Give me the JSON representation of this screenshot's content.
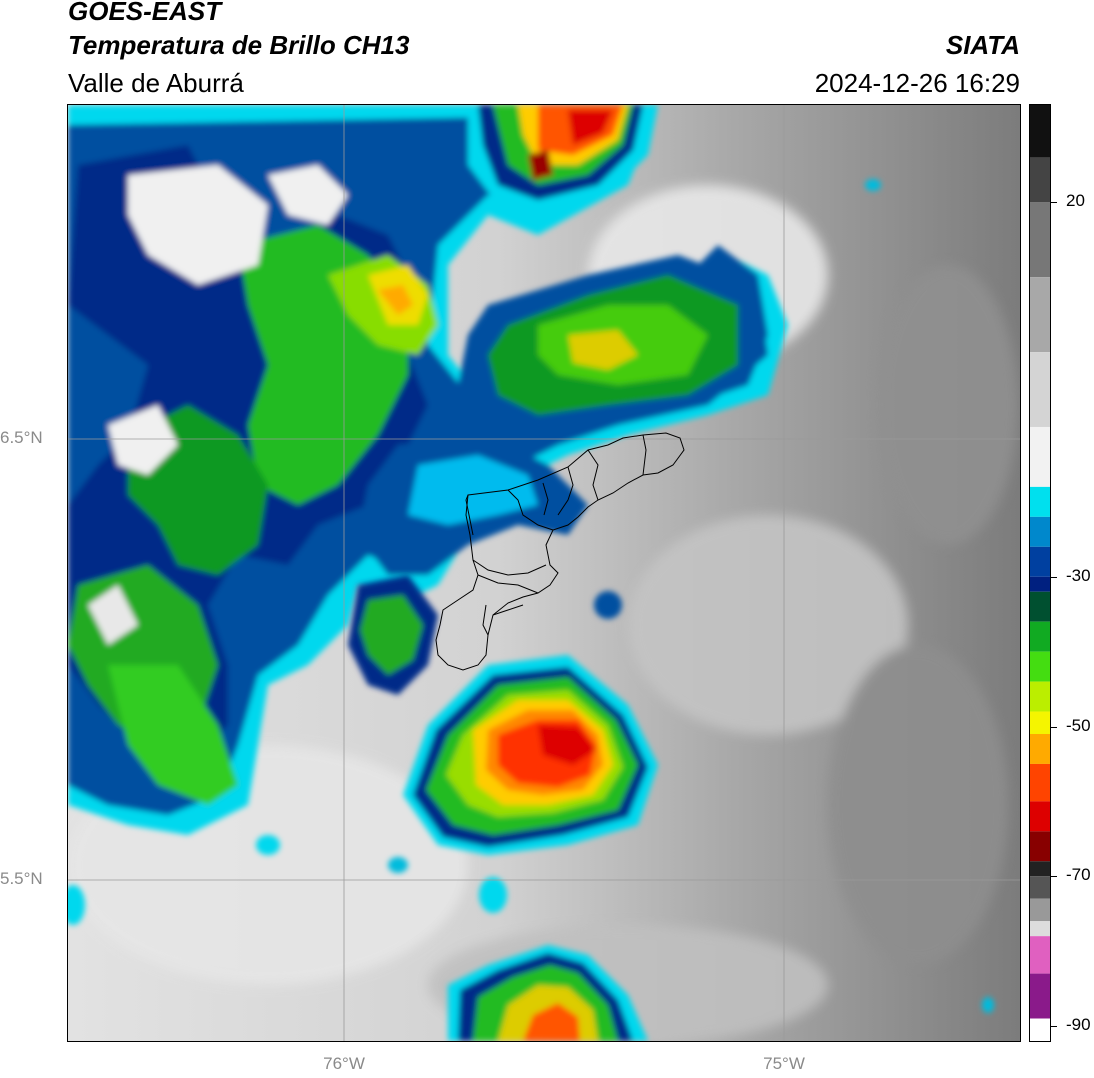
{
  "header": {
    "title_line1": "GOES-EAST",
    "title_line2": "Temperatura de Brillo CH13",
    "region": "Valle de Aburrá",
    "brand": "SIATA",
    "timestamp": "2024-12-26 16:29"
  },
  "map": {
    "latitude_labels": [
      "6.5°N",
      "5.5°N"
    ],
    "longitude_labels": [
      "76°W",
      "75°W"
    ],
    "gridlines": true
  },
  "colorbar": {
    "tick_labels": [
      "20",
      "-30",
      "-50",
      "-70",
      "-90"
    ],
    "tick_values": [
      20,
      -30,
      -50,
      -70,
      -90
    ],
    "range": [
      -92,
      33
    ],
    "colors": {
      "white_band": "#ffffff",
      "purple": "#8a1a8a",
      "magenta": "#e060c0",
      "dark": "#111111",
      "red": "#dd0000",
      "orange": "#ff8800",
      "yellow": "#f5f500",
      "green": "#11bb11",
      "dark_blue": "#002080",
      "cyan": "#00ddee",
      "light_gray": "#eeeeee",
      "mid_gray": "#808080",
      "black": "#111111"
    }
  }
}
